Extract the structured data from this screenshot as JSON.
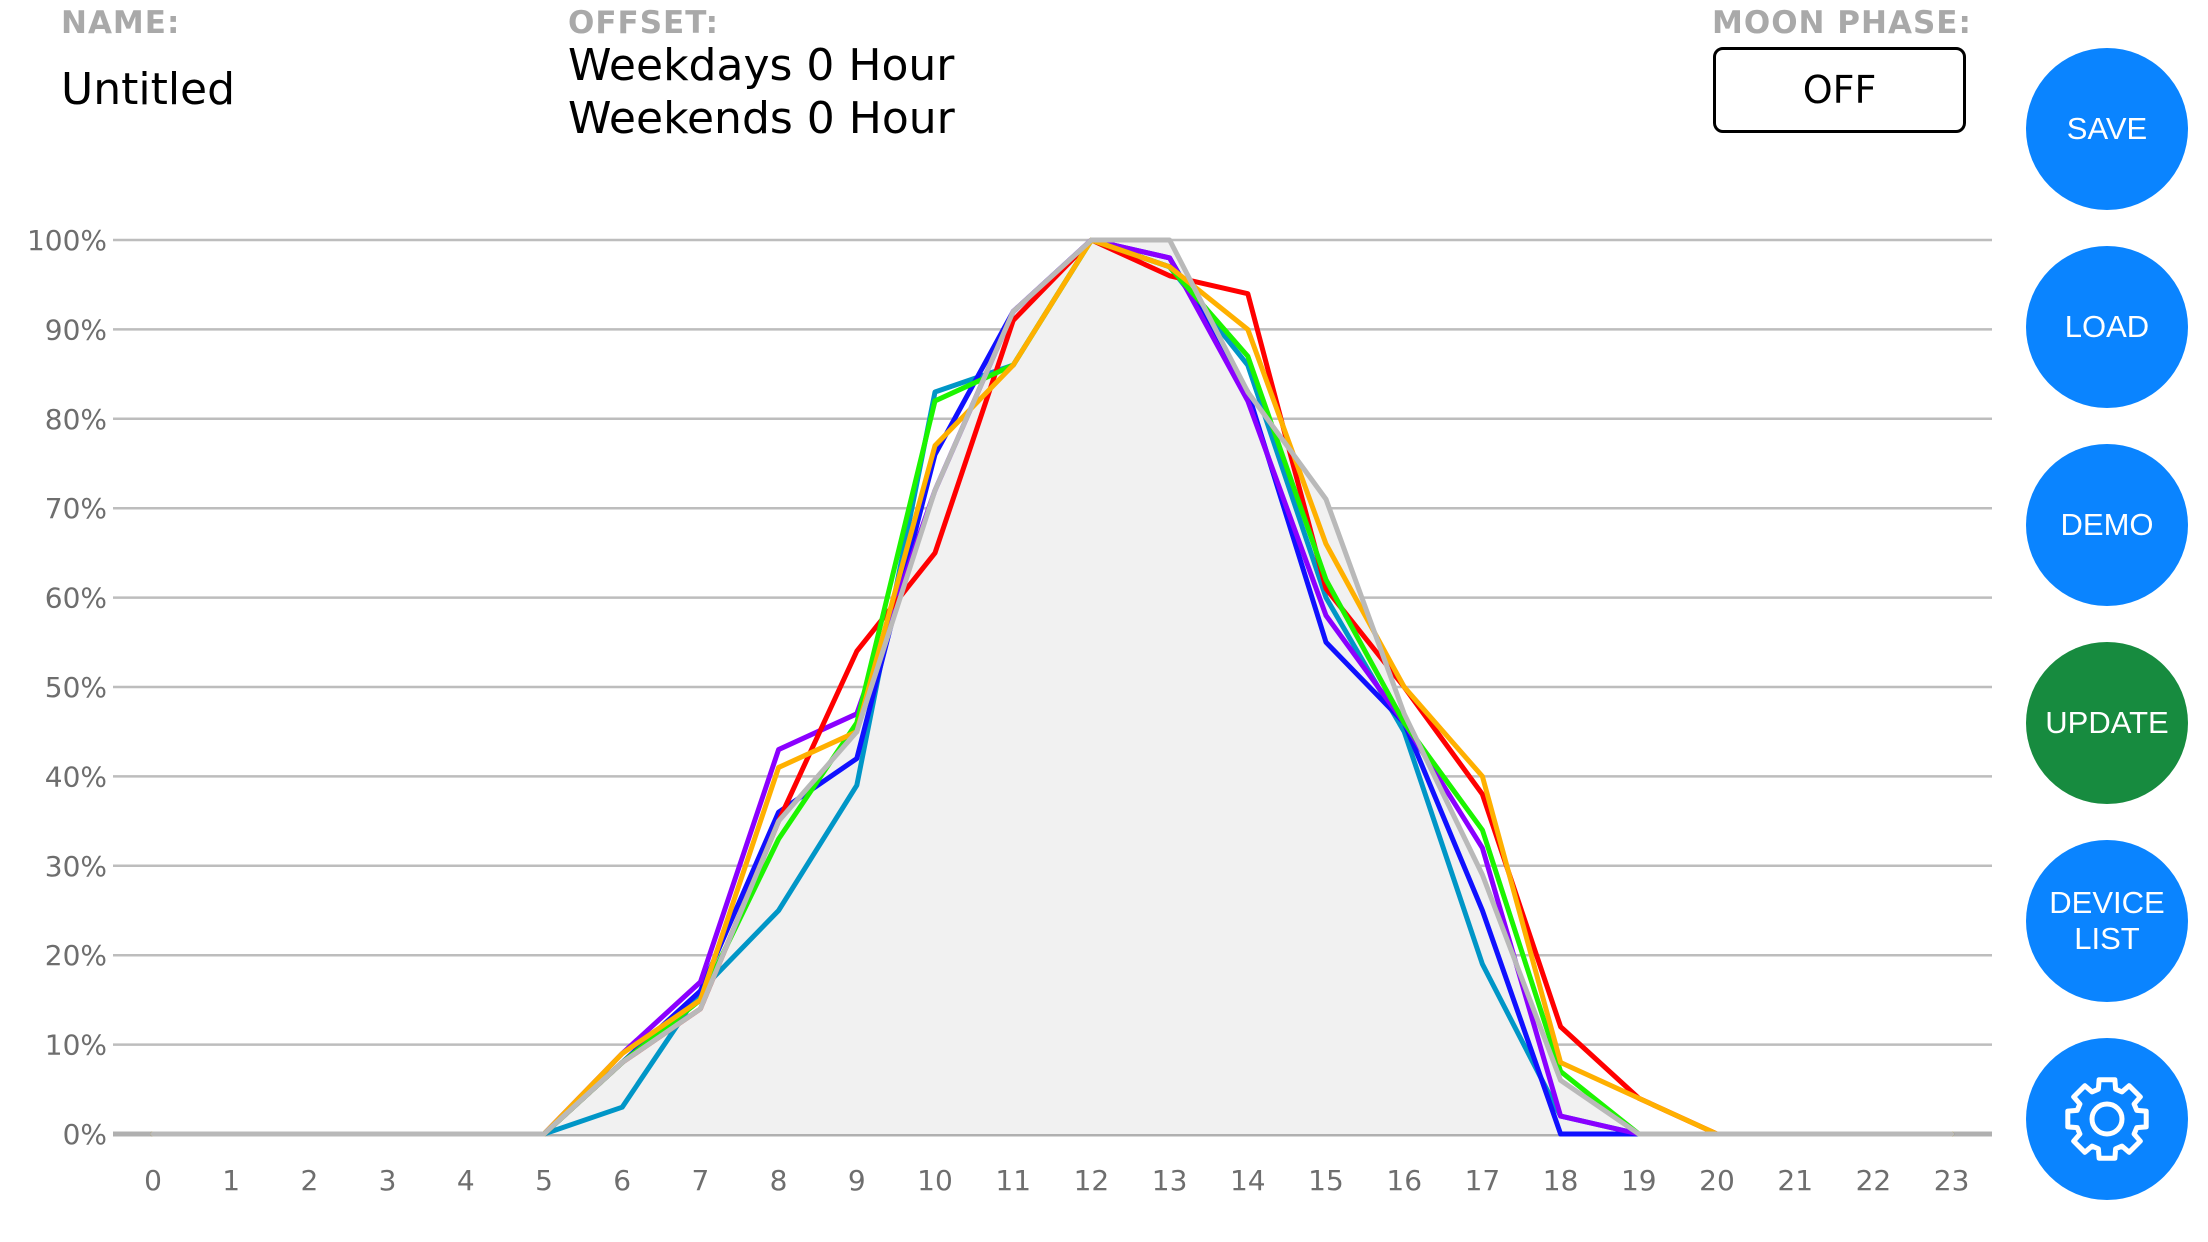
{
  "header": {
    "name_label": "NAME:",
    "name_value": "Untitled",
    "offset_label": "OFFSET:",
    "offset_weekdays": "Weekdays 0 Hour",
    "offset_weekends": "Weekends 0 Hour",
    "moon_label": "MOON PHASE:",
    "moon_value": "OFF"
  },
  "buttons": {
    "save": "SAVE",
    "load": "LOAD",
    "demo": "DEMO",
    "update": "UPDATE",
    "device_list_line1": "DEVICE",
    "device_list_line2": "LIST",
    "settings_icon": "gear-icon"
  },
  "colors": {
    "button_blue": "#0a84ff",
    "button_green": "#178b3f"
  },
  "chart_data": {
    "type": "line",
    "x": [
      0,
      1,
      2,
      3,
      4,
      5,
      6,
      7,
      8,
      9,
      10,
      11,
      12,
      13,
      14,
      15,
      16,
      17,
      18,
      19,
      20,
      21,
      22,
      23
    ],
    "xlim": [
      0,
      23
    ],
    "ylim": [
      0,
      100
    ],
    "y_ticks": [
      "0%",
      "10%",
      "20%",
      "30%",
      "40%",
      "50%",
      "60%",
      "70%",
      "80%",
      "90%",
      "100%"
    ],
    "x_ticks": [
      "0",
      "1",
      "2",
      "3",
      "4",
      "5",
      "6",
      "7",
      "8",
      "9",
      "10",
      "11",
      "12",
      "13",
      "14",
      "15",
      "16",
      "17",
      "18",
      "19",
      "20",
      "21",
      "22",
      "23"
    ],
    "grid": true,
    "fill_series_index": 6,
    "fill_color": "#f1f1f1",
    "series": [
      {
        "color": "#0096c7",
        "values": [
          0,
          0,
          0,
          0,
          0,
          0,
          3,
          16,
          25,
          39,
          83,
          86,
          100,
          97,
          86,
          60,
          45,
          19,
          2,
          0,
          0,
          0,
          0,
          0
        ]
      },
      {
        "color": "#1010ff",
        "values": [
          0,
          0,
          0,
          0,
          0,
          0,
          8,
          16,
          36,
          42,
          76,
          92,
          100,
          98,
          83,
          55,
          46,
          25,
          0,
          0,
          0,
          0,
          0,
          0
        ]
      },
      {
        "color": "#8a00ff",
        "values": [
          0,
          0,
          0,
          0,
          0,
          0,
          9,
          17,
          43,
          47,
          72,
          92,
          100,
          98,
          82,
          58,
          46,
          32,
          2,
          0,
          0,
          0,
          0,
          0
        ]
      },
      {
        "color": "#ff0000",
        "values": [
          0,
          0,
          0,
          0,
          0,
          0,
          8,
          14,
          35,
          54,
          65,
          91,
          100,
          96,
          94,
          61,
          50,
          38,
          12,
          4,
          0,
          0,
          0,
          0
        ]
      },
      {
        "color": "#1cf400",
        "values": [
          0,
          0,
          0,
          0,
          0,
          0,
          8,
          15,
          33,
          46,
          82,
          86,
          100,
          97,
          87,
          62,
          46,
          34,
          7,
          0,
          0,
          0,
          0,
          0
        ]
      },
      {
        "color": "#ffb000",
        "values": [
          0,
          0,
          0,
          0,
          0,
          0,
          9,
          15,
          41,
          45,
          77,
          86,
          100,
          97,
          90,
          66,
          50,
          40,
          8,
          4,
          0,
          0,
          0,
          0
        ]
      },
      {
        "color": "#b9b9b9",
        "values": [
          0,
          0,
          0,
          0,
          0,
          0,
          8,
          14,
          35,
          45,
          72,
          92,
          100,
          100,
          83,
          71,
          47,
          29,
          6,
          0,
          0,
          0,
          0,
          0
        ]
      }
    ]
  }
}
